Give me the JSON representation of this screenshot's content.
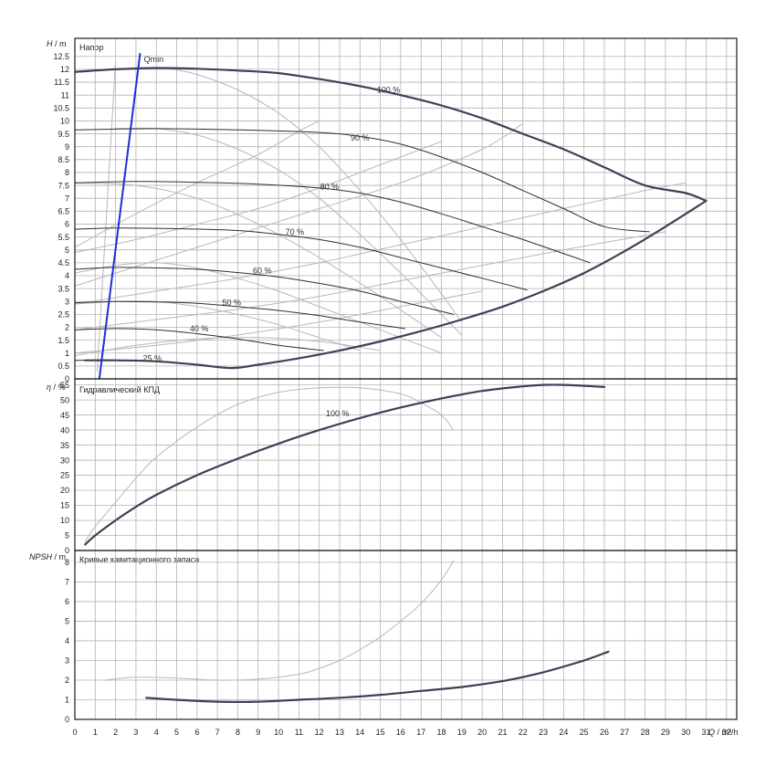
{
  "chart_data": [
    {
      "type": "line",
      "title": "Напор",
      "ylabel_sym": "H",
      "ylabel_unit": " / m",
      "xlabel_sym": "Q",
      "xlabel_unit": " / m³/h",
      "xlim": [
        0,
        32.5
      ],
      "ylim": [
        0,
        13.2
      ],
      "x_ticks": [
        0,
        1,
        2,
        3,
        4,
        5,
        6,
        7,
        8,
        9,
        10,
        11,
        12,
        13,
        14,
        15,
        16,
        17,
        18,
        19,
        20,
        21,
        22,
        23,
        24,
        25,
        26,
        27,
        28,
        29,
        30,
        31,
        32
      ],
      "y_ticks": [
        0,
        0.5,
        1,
        1.5,
        2,
        2.5,
        3,
        3.5,
        4,
        4.5,
        5,
        5.5,
        6,
        6.5,
        7,
        7.5,
        8,
        8.5,
        9,
        9.5,
        10,
        10.5,
        11,
        11.5,
        12,
        12.5
      ],
      "grid": true,
      "annotations": [
        {
          "text": "Qmin",
          "x": 3.3,
          "y": 12.5
        }
      ],
      "series": [
        {
          "name": "100 %",
          "label_at": [
            15.4,
            11.2
          ],
          "emphasis": "main",
          "x": [
            0,
            2,
            4,
            6,
            8,
            10,
            12,
            14,
            16,
            18,
            20,
            22,
            24,
            26,
            28,
            30,
            31
          ],
          "y": [
            11.9,
            12.0,
            12.05,
            12.02,
            11.95,
            11.85,
            11.62,
            11.35,
            11.0,
            10.6,
            10.1,
            9.5,
            8.9,
            8.2,
            7.5,
            7.2,
            6.9
          ]
        },
        {
          "name": "90 %",
          "label_at": [
            14.0,
            9.35
          ],
          "emphasis": "normal",
          "x": [
            0,
            4,
            8,
            12,
            14,
            16,
            18,
            20,
            22,
            24,
            26,
            28.2
          ],
          "y": [
            9.65,
            9.7,
            9.65,
            9.55,
            9.4,
            9.1,
            8.6,
            8.0,
            7.3,
            6.6,
            5.9,
            5.7
          ]
        },
        {
          "name": "80 %",
          "label_at": [
            12.5,
            7.45
          ],
          "emphasis": "normal",
          "x": [
            0,
            3,
            6,
            9,
            12,
            14,
            16,
            18,
            20,
            22,
            25.3
          ],
          "y": [
            7.6,
            7.65,
            7.62,
            7.55,
            7.4,
            7.2,
            6.85,
            6.4,
            5.9,
            5.4,
            4.5
          ]
        },
        {
          "name": "70 %",
          "label_at": [
            10.8,
            5.7
          ],
          "emphasis": "normal",
          "x": [
            0,
            2,
            5,
            8,
            10,
            12,
            14,
            16,
            18,
            20,
            22.2
          ],
          "y": [
            5.8,
            5.85,
            5.82,
            5.75,
            5.6,
            5.4,
            5.1,
            4.7,
            4.3,
            3.9,
            3.45
          ]
        },
        {
          "name": "60 %",
          "label_at": [
            9.2,
            4.2
          ],
          "emphasis": "normal",
          "x": [
            0,
            2,
            4,
            6,
            8,
            10,
            12,
            14,
            16,
            18.6
          ],
          "y": [
            4.25,
            4.32,
            4.3,
            4.25,
            4.12,
            3.95,
            3.7,
            3.4,
            3.0,
            2.5
          ]
        },
        {
          "name": "50 %",
          "label_at": [
            7.7,
            2.95
          ],
          "emphasis": "normal",
          "x": [
            0,
            2,
            4,
            6,
            8,
            10,
            12,
            14,
            16.2
          ],
          "y": [
            2.95,
            3.0,
            2.98,
            2.93,
            2.8,
            2.65,
            2.45,
            2.2,
            1.95
          ]
        },
        {
          "name": "40 %",
          "label_at": [
            6.1,
            1.95
          ],
          "emphasis": "normal",
          "x": [
            0,
            2,
            4,
            6,
            8,
            10,
            12.2
          ],
          "y": [
            1.9,
            1.95,
            1.9,
            1.75,
            1.55,
            1.3,
            1.1
          ]
        },
        {
          "name": "25 %",
          "label_at": [
            3.8,
            0.8
          ],
          "emphasis": "normal",
          "x": [
            0,
            2,
            4,
            6,
            7.7
          ],
          "y": [
            0.72,
            0.72,
            0.68,
            0.55,
            0.42
          ]
        },
        {
          "name": "",
          "emphasis": "main",
          "x": [
            0.5,
            2,
            4,
            6,
            7.7,
            9,
            11,
            13,
            15,
            17,
            19,
            21,
            23,
            25,
            27,
            29,
            31
          ],
          "y": [
            0.72,
            0.72,
            0.68,
            0.55,
            0.42,
            0.55,
            0.8,
            1.1,
            1.45,
            1.85,
            2.3,
            2.8,
            3.4,
            4.1,
            4.95,
            5.9,
            6.9
          ]
        },
        {
          "name": "",
          "emphasis": "blue",
          "x": [
            1.2,
            3.2
          ],
          "y": [
            0,
            12.6
          ]
        },
        {
          "name": "",
          "emphasis": "light",
          "x": [
            1.1,
            2.0
          ],
          "y": [
            0.3,
            12.3
          ]
        },
        {
          "name": "",
          "emphasis": "light",
          "x": [
            4.5,
            6,
            8,
            10,
            12,
            14,
            16,
            18,
            19
          ],
          "y": [
            12.05,
            11.8,
            11.2,
            10.3,
            9.0,
            7.3,
            5.4,
            3.3,
            2.2
          ]
        },
        {
          "name": "",
          "emphasis": "light",
          "x": [
            2,
            4,
            6,
            8,
            10,
            12,
            14,
            16,
            18,
            19
          ],
          "y": [
            9.7,
            9.7,
            9.45,
            8.9,
            8.1,
            7.0,
            5.6,
            4.1,
            2.5,
            1.7
          ]
        },
        {
          "name": "",
          "emphasis": "light",
          "x": [
            0,
            3,
            6,
            9,
            12,
            15,
            18
          ],
          "y": [
            7.6,
            7.5,
            7.0,
            6.0,
            4.7,
            3.2,
            1.6
          ]
        },
        {
          "name": "",
          "emphasis": "light",
          "x": [
            0,
            3,
            6,
            9,
            12,
            15,
            18
          ],
          "y": [
            4.9,
            5.4,
            6.0,
            6.6,
            7.4,
            8.3,
            9.2
          ]
        },
        {
          "name": "",
          "emphasis": "light",
          "x": [
            0,
            4,
            8,
            12,
            16,
            20,
            22
          ],
          "y": [
            3.6,
            4.6,
            5.6,
            6.6,
            7.6,
            8.9,
            9.9
          ]
        },
        {
          "name": "",
          "emphasis": "light",
          "x": [
            0,
            4,
            8,
            12,
            16,
            20,
            24,
            28,
            30
          ],
          "y": [
            2.9,
            3.4,
            3.9,
            4.5,
            5.2,
            5.9,
            6.6,
            7.3,
            7.6
          ]
        },
        {
          "name": "",
          "emphasis": "light",
          "x": [
            0,
            4,
            8,
            12,
            16,
            20,
            24,
            29
          ],
          "y": [
            1.9,
            2.3,
            2.7,
            3.2,
            3.8,
            4.4,
            5.0,
            5.7
          ]
        },
        {
          "name": "",
          "emphasis": "light",
          "x": [
            0,
            4,
            8,
            12,
            16,
            20
          ],
          "y": [
            1.0,
            1.3,
            1.7,
            2.2,
            2.8,
            3.4
          ]
        },
        {
          "name": "",
          "emphasis": "light",
          "x": [
            0,
            3,
            6,
            9,
            11,
            12
          ],
          "y": [
            5.1,
            6.4,
            7.6,
            8.7,
            9.6,
            10.0
          ]
        },
        {
          "name": "",
          "emphasis": "light",
          "x": [
            0,
            2,
            4,
            6,
            8,
            10,
            12,
            14,
            16,
            18
          ],
          "y": [
            4.1,
            4.4,
            4.5,
            4.3,
            3.9,
            3.4,
            2.8,
            2.2,
            1.6,
            1.0
          ]
        },
        {
          "name": "",
          "emphasis": "light",
          "x": [
            0,
            2,
            4,
            6,
            8,
            10,
            12,
            14
          ],
          "y": [
            2.9,
            3.0,
            3.0,
            2.8,
            2.5,
            2.1,
            1.6,
            1.1
          ]
        },
        {
          "name": "",
          "emphasis": "light",
          "x": [
            0,
            3,
            6,
            9,
            12,
            15
          ],
          "y": [
            0.9,
            1.3,
            1.55,
            1.6,
            1.45,
            1.1
          ]
        }
      ]
    },
    {
      "type": "line",
      "title": "Гидравлический КПД",
      "ylabel_sym": "η",
      "ylabel_unit": " / %",
      "xlim": [
        0,
        32.5
      ],
      "ylim": [
        0,
        57
      ],
      "y_ticks": [
        0,
        5,
        10,
        15,
        20,
        25,
        30,
        35,
        40,
        45,
        50,
        55
      ],
      "grid": true,
      "series": [
        {
          "name": "100 %",
          "label_at": [
            12.9,
            45.5
          ],
          "emphasis": "main",
          "x": [
            0.5,
            1,
            2,
            3,
            4,
            6,
            8,
            10,
            12,
            14,
            16,
            18,
            20,
            22,
            23,
            24,
            25,
            26
          ],
          "y": [
            2,
            5,
            10,
            14.5,
            18.5,
            25,
            30.5,
            35.5,
            40,
            44,
            47.5,
            50.5,
            53,
            54.5,
            55,
            55,
            54.7,
            54.3
          ]
        },
        {
          "name": "",
          "emphasis": "light",
          "x": [
            0.5,
            1,
            2,
            3,
            4,
            6,
            8,
            10,
            12,
            14,
            16,
            17,
            18,
            18.6
          ],
          "y": [
            3,
            8,
            16,
            24,
            31,
            41,
            48.5,
            52.5,
            54,
            54,
            52,
            49,
            45,
            40
          ]
        }
      ]
    },
    {
      "type": "line",
      "title": "Кривые кавитационного запаса",
      "ylabel_sym": "NPSH",
      "ylabel_unit": " / m",
      "xlim": [
        0,
        32.5
      ],
      "ylim": [
        0,
        8.6
      ],
      "y_ticks": [
        0,
        1,
        2,
        3,
        4,
        5,
        6,
        7,
        8
      ],
      "grid": true,
      "series": [
        {
          "name": "",
          "emphasis": "main",
          "x": [
            3.5,
            5,
            7,
            9,
            11,
            13,
            15,
            17,
            19,
            21,
            23,
            25,
            26.2
          ],
          "y": [
            1.1,
            1.0,
            0.9,
            0.9,
            1.0,
            1.1,
            1.25,
            1.45,
            1.65,
            1.95,
            2.4,
            3.0,
            3.45
          ]
        },
        {
          "name": "",
          "emphasis": "light",
          "x": [
            1.5,
            3,
            5,
            7,
            9,
            11,
            12,
            13,
            14,
            15,
            16,
            17,
            18,
            18.6
          ],
          "y": [
            2.0,
            2.15,
            2.1,
            2.0,
            2.05,
            2.3,
            2.6,
            3.0,
            3.55,
            4.2,
            5.0,
            5.9,
            7.1,
            8.1
          ]
        }
      ]
    }
  ],
  "colors": {
    "main": "#3a4256",
    "normal": "#2c2f3a",
    "light": "#b8b8b8",
    "blue": "#1b2fd9",
    "grid": "#b3b3b3",
    "frame": "#1a1a1a"
  }
}
